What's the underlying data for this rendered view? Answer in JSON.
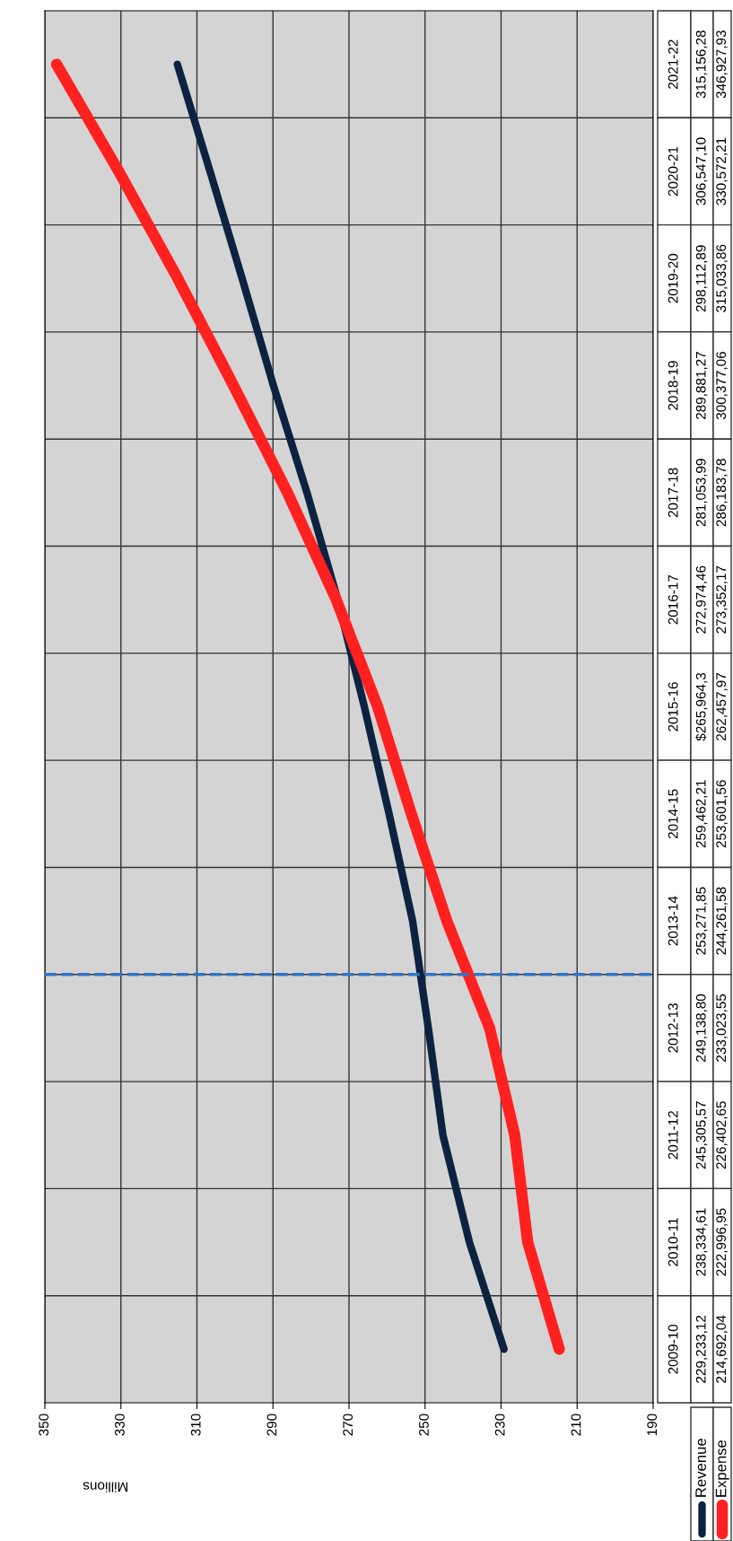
{
  "chart_data": {
    "type": "line",
    "orientation": "horizontal",
    "xlabel": "Millions",
    "categories": [
      "2021-22",
      "2020-21",
      "2019-20",
      "2018-19",
      "2017-18",
      "2016-17",
      "2015-16",
      "2014-15",
      "2013-14",
      "2012-13",
      "2011-12",
      "2010-11",
      "2009-10"
    ],
    "series": [
      {
        "name": "Revenue",
        "color": "#0d2240",
        "values": [
          315.15628,
          306.5471,
          298.11289,
          289.88127,
          281.05399,
          272.97446,
          265.9643,
          259.46221,
          253.27185,
          249.1388,
          245.30557,
          238.33461,
          229.23312
        ],
        "value_labels": [
          "315,156,28",
          "306,547,10",
          "298,112,89",
          "289,881,27",
          "281,053,99",
          "272,974,46",
          "$265,964,3",
          "259,462,21",
          "253,271,85",
          "249,138,80",
          "245,305,57",
          "238,334,61",
          "229,233,12"
        ]
      },
      {
        "name": "Expense",
        "color": "#ff2020",
        "values": [
          346.92793,
          330.57221,
          315.03386,
          300.37706,
          286.18378,
          273.35217,
          262.45797,
          253.60156,
          244.26158,
          233.02355,
          226.40265,
          222.99695,
          214.69204
        ],
        "value_labels": [
          "346,927,93",
          "330,572,21",
          "315,033,86",
          "300,377,06",
          "286,183,78",
          "273,352,17",
          "262,457,97",
          "253,601,56",
          "244,261,58",
          "233,023,55",
          "226,402,65",
          "222,996,95",
          "214,692,04"
        ]
      }
    ],
    "xlim": [
      350,
      190
    ],
    "xticks": [
      350,
      330,
      310,
      290,
      270,
      250,
      230,
      210,
      190
    ],
    "grid": true,
    "legend": "bottom",
    "marker": "none",
    "line_style": "solid",
    "ref_lines": [
      {
        "axis": "y",
        "value": "2012-13",
        "color": "#2e75c8",
        "line_style": "dashed"
      }
    ]
  }
}
